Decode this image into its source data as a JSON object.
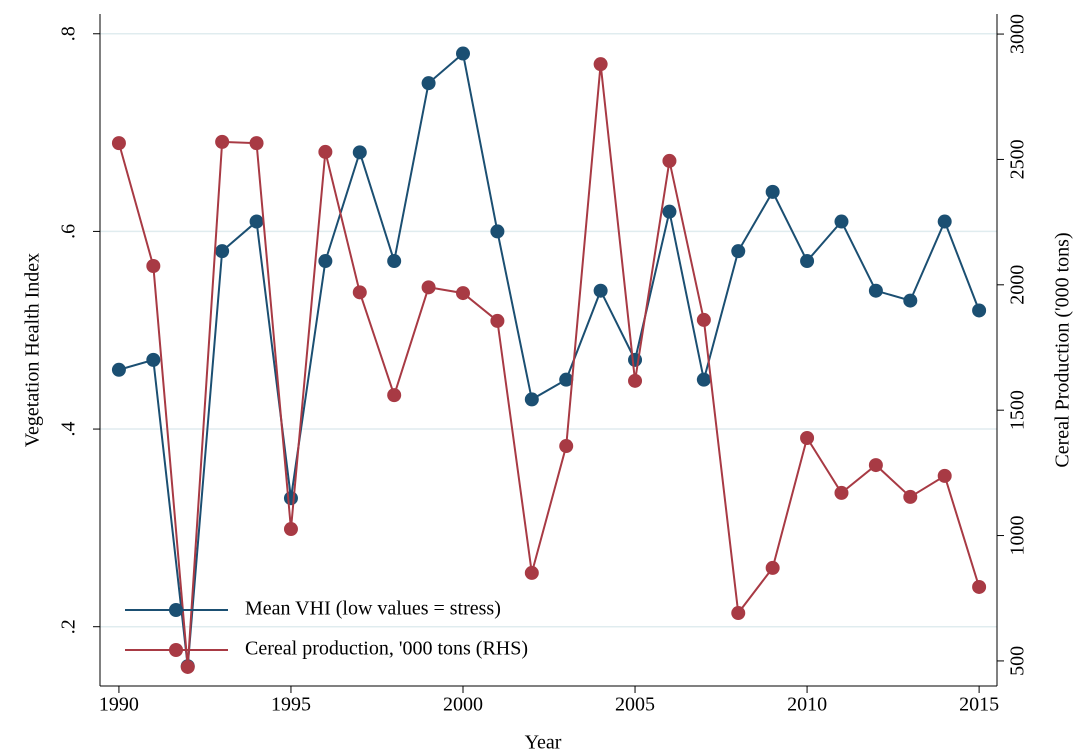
{
  "chart_data": {
    "type": "line",
    "x_label": "Year",
    "y_label": "Vegetation Health Index",
    "y2_label": "Cereal Production ('000 tons)",
    "x": [
      1990,
      1991,
      1992,
      1993,
      1994,
      1995,
      1996,
      1997,
      1998,
      1999,
      2000,
      2001,
      2002,
      2003,
      2004,
      2005,
      2006,
      2007,
      2008,
      2009,
      2010,
      2011,
      2012,
      2013,
      2014,
      2015
    ],
    "series": [
      {
        "name": "Mean VHI (low values = stress)",
        "color": "#1b4f72",
        "values": [
          0.46,
          0.47,
          0.16,
          0.58,
          0.61,
          0.33,
          0.57,
          0.68,
          0.57,
          0.75,
          0.78,
          0.6,
          0.43,
          0.45,
          0.54,
          0.47,
          0.62,
          0.45,
          0.58,
          0.64,
          0.57,
          0.61,
          0.54,
          0.53,
          0.61,
          0.52
        ]
      },
      {
        "name": "Cereal production, '000 tons (RHS)",
        "color": "#a83a44",
        "axis": "y2",
        "values": [
          2565,
          2075,
          476,
          2570,
          2565,
          1026,
          2530,
          1970,
          1560,
          1990,
          1967,
          1856,
          851,
          1357,
          2880,
          1617,
          2494,
          1860,
          691,
          871,
          1389,
          1170,
          1281,
          1154,
          1238,
          795
        ]
      }
    ],
    "xlim": [
      1989.45,
      2015.52
    ],
    "xticks": [
      1990,
      1995,
      2000,
      2005,
      2010,
      2015
    ],
    "ylim": [
      0.14,
      0.82
    ],
    "yticks": [
      {
        "value": 0.2,
        "label": ".2"
      },
      {
        "value": 0.4,
        "label": ".4"
      },
      {
        "value": 0.6,
        "label": ".6"
      },
      {
        "value": 0.8,
        "label": ".8"
      }
    ],
    "y2lim": [
      400,
      3080
    ],
    "y2ticks": [
      500,
      1000,
      1500,
      2000,
      2500,
      3000
    ],
    "grid": true,
    "legend": "lower left"
  }
}
